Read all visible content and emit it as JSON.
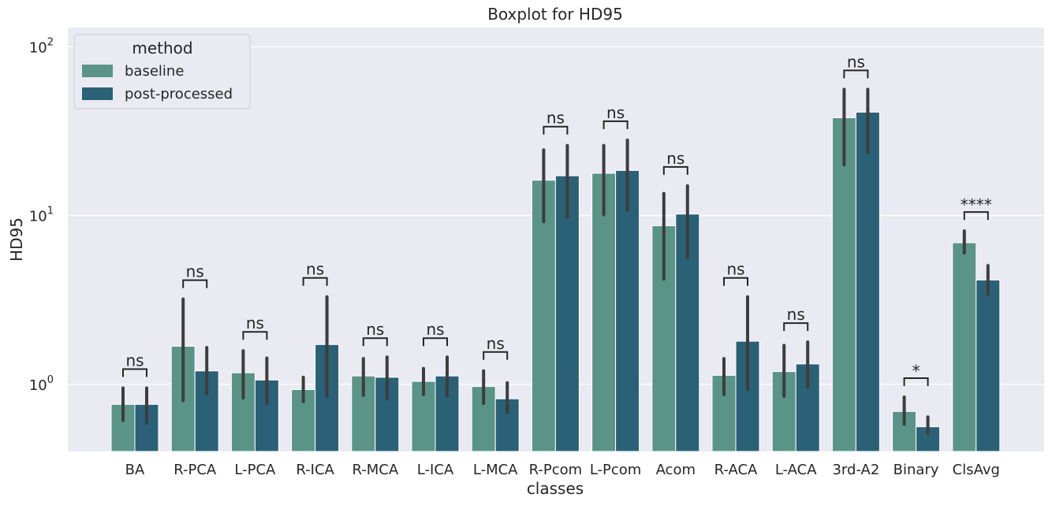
{
  "chart_data": {
    "type": "bar",
    "title": "Boxplot for HD95",
    "xlabel": "classes",
    "ylabel": "HD95",
    "yscale": "log",
    "ylim": [
      0.4,
      130
    ],
    "grid": true,
    "legend_position": "top-left",
    "legend_title": "method",
    "y_ticks": [
      {
        "value": 1,
        "base": "10",
        "exp": "0"
      },
      {
        "value": 10,
        "base": "10",
        "exp": "1"
      },
      {
        "value": 100,
        "base": "10",
        "exp": "2"
      }
    ],
    "categories": [
      "BA",
      "R-PCA",
      "L-PCA",
      "R-ICA",
      "R-MCA",
      "L-ICA",
      "L-MCA",
      "R-Pcom",
      "L-Pcom",
      "Acom",
      "R-ACA",
      "L-ACA",
      "3rd-A2",
      "Binary",
      "ClsAvg"
    ],
    "series": [
      {
        "name": "baseline",
        "color": "#5a9487",
        "values": [
          0.76,
          1.68,
          1.17,
          0.93,
          1.12,
          1.04,
          0.97,
          16.2,
          17.8,
          8.7,
          1.13,
          1.19,
          38.0,
          0.69,
          6.9
        ],
        "err_low": [
          0.61,
          0.8,
          0.83,
          0.79,
          0.86,
          0.87,
          0.77,
          9.2,
          10.1,
          4.2,
          0.87,
          0.85,
          20.0,
          0.58,
          6.0
        ],
        "err_high": [
          0.95,
          3.2,
          1.58,
          1.1,
          1.42,
          1.24,
          1.2,
          24.5,
          26.0,
          13.5,
          1.42,
          1.7,
          56.0,
          0.84,
          8.1
        ]
      },
      {
        "name": "post-processed",
        "color": "#2a6177",
        "values": [
          0.76,
          1.2,
          1.06,
          1.72,
          1.1,
          1.12,
          0.82,
          17.2,
          18.5,
          10.2,
          1.8,
          1.32,
          41.0,
          0.56,
          4.15
        ],
        "err_low": [
          0.59,
          0.88,
          0.77,
          0.85,
          0.82,
          0.85,
          0.68,
          9.8,
          10.8,
          5.6,
          0.93,
          0.96,
          23.5,
          0.51,
          3.4
        ],
        "err_high": [
          0.95,
          1.65,
          1.43,
          3.3,
          1.45,
          1.45,
          1.02,
          26.0,
          28.0,
          15.0,
          3.3,
          1.78,
          56.0,
          0.64,
          5.05
        ]
      }
    ],
    "annotations": [
      "ns",
      "ns",
      "ns",
      "ns",
      "ns",
      "ns",
      "ns",
      "ns",
      "ns",
      "ns",
      "ns",
      "ns",
      "ns",
      "*",
      "****"
    ]
  }
}
